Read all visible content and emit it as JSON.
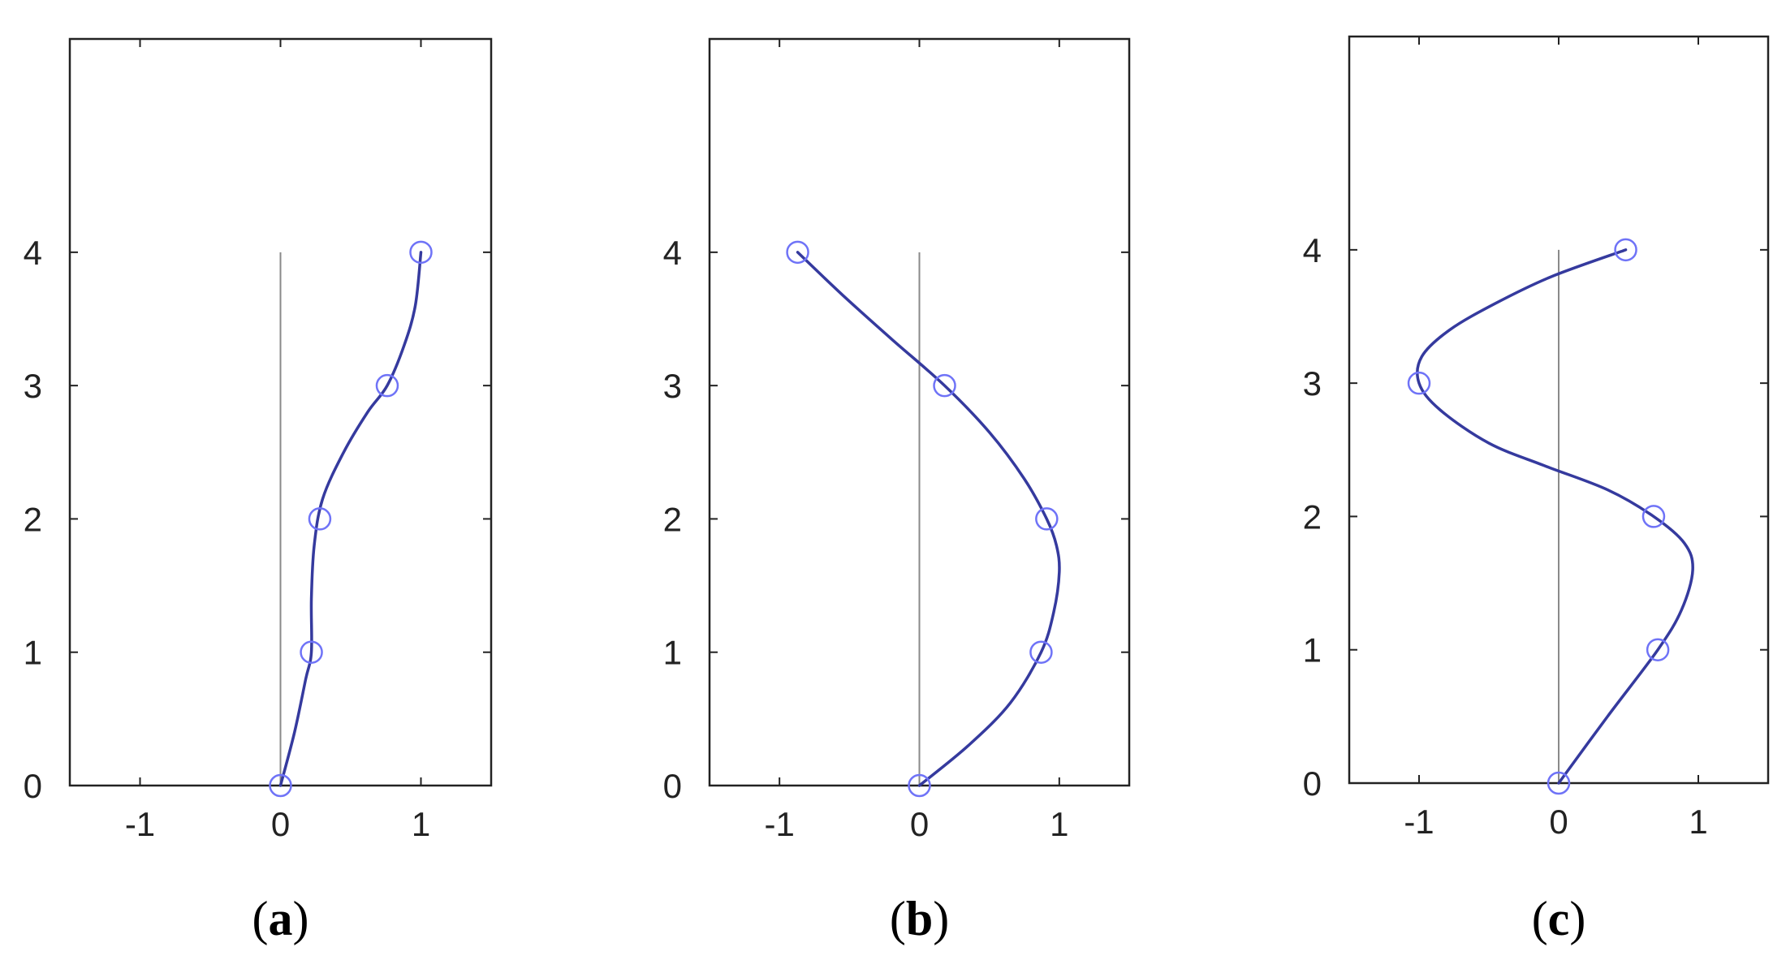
{
  "figure": {
    "colors": {
      "curve": "#353a9e",
      "marker": "#6f73f7",
      "axis": "#222222",
      "center_line": "#8a8a8a"
    }
  },
  "chart_data": [
    {
      "type": "line",
      "panel_label": "a",
      "xlim": [
        -1.5,
        1.5
      ],
      "ylim": [
        0,
        5.6
      ],
      "xticks": [
        -1,
        0,
        1
      ],
      "yticks": [
        0,
        1,
        2,
        3,
        4
      ],
      "xtick_labels": [
        "-1",
        "0",
        "1"
      ],
      "ytick_labels": [
        "0",
        "1",
        "2",
        "3",
        "4"
      ],
      "grid": false,
      "center_line": {
        "x": 0,
        "y": [
          0,
          4
        ]
      },
      "points": {
        "x": [
          0,
          0.22,
          0.28,
          0.76,
          1.0
        ],
        "y": [
          0,
          1,
          2,
          3,
          4
        ]
      },
      "curve": {
        "x": [
          0,
          0.1,
          0.18,
          0.22,
          0.22,
          0.24,
          0.3,
          0.45,
          0.62,
          0.76,
          0.88,
          0.96,
          1.0
        ],
        "y": [
          0,
          0.4,
          0.8,
          1.0,
          1.4,
          1.8,
          2.15,
          2.5,
          2.8,
          3.0,
          3.3,
          3.6,
          4.0
        ]
      }
    },
    {
      "type": "line",
      "panel_label": "b",
      "xlim": [
        -1.5,
        1.5
      ],
      "ylim": [
        0,
        5.6
      ],
      "xticks": [
        -1,
        0,
        1
      ],
      "yticks": [
        0,
        1,
        2,
        3,
        4
      ],
      "xtick_labels": [
        "-1",
        "0",
        "1"
      ],
      "ytick_labels": [
        "0",
        "1",
        "2",
        "3",
        "4"
      ],
      "grid": false,
      "center_line": {
        "x": 0,
        "y": [
          0,
          4
        ]
      },
      "points": {
        "x": [
          0,
          0.87,
          0.91,
          0.18,
          -0.87
        ],
        "y": [
          0,
          1,
          2,
          3,
          4
        ]
      },
      "curve": {
        "x": [
          0,
          0.35,
          0.65,
          0.87,
          0.96,
          1.0,
          0.98,
          0.91,
          0.75,
          0.5,
          0.18,
          -0.2,
          -0.55,
          -0.87
        ],
        "y": [
          0,
          0.3,
          0.62,
          1.0,
          1.3,
          1.6,
          1.8,
          2.0,
          2.3,
          2.65,
          3.0,
          3.35,
          3.68,
          4.0
        ]
      }
    },
    {
      "type": "line",
      "panel_label": "c",
      "xlim": [
        -1.5,
        1.5
      ],
      "ylim": [
        0,
        5.6
      ],
      "xticks": [
        -1,
        0,
        1
      ],
      "yticks": [
        0,
        1,
        2,
        3,
        4
      ],
      "xtick_labels": [
        "-1",
        "0",
        "1"
      ],
      "ytick_labels": [
        "0",
        "1",
        "2",
        "3",
        "4"
      ],
      "grid": false,
      "center_line": {
        "x": 0,
        "y": [
          0,
          4
        ]
      },
      "points": {
        "x": [
          0,
          0.71,
          0.68,
          -1.0,
          0.48
        ],
        "y": [
          0,
          1,
          2,
          3,
          4
        ]
      },
      "curve": {
        "x": [
          0,
          0.35,
          0.71,
          0.88,
          0.96,
          0.9,
          0.68,
          0.35,
          -0.1,
          -0.5,
          -0.85,
          -1.0,
          -0.98,
          -0.78,
          -0.45,
          -0.05,
          0.48
        ],
        "y": [
          0,
          0.5,
          1.0,
          1.3,
          1.6,
          1.8,
          2.0,
          2.2,
          2.38,
          2.55,
          2.8,
          3.0,
          3.2,
          3.4,
          3.6,
          3.8,
          4.0
        ]
      }
    }
  ]
}
